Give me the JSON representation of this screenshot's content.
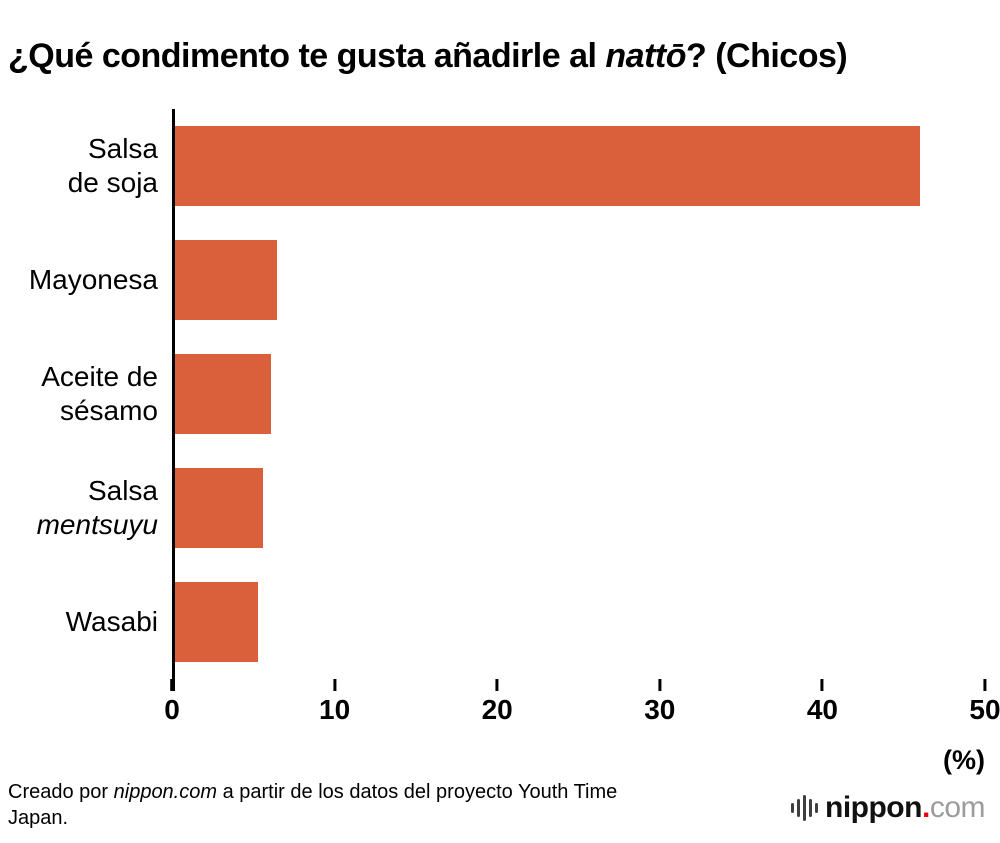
{
  "title_parts": [
    {
      "text": "¿Qué condimento te gusta añadirle al ",
      "italic": false
    },
    {
      "text": "nattō",
      "italic": true
    },
    {
      "text": "? (Chicos)",
      "italic": false
    }
  ],
  "chart_data": {
    "type": "bar",
    "orientation": "horizontal",
    "title": "¿Qué condimento te gusta añadirle al nattō? (Chicos)",
    "categories": [
      "Salsa de soja",
      "Mayonesa",
      "Aceite de sésamo",
      "Salsa mentsuyu",
      "Wasabi"
    ],
    "category_lines": [
      [
        [
          {
            "text": "Salsa"
          }
        ],
        [
          {
            "text": "de soja"
          }
        ]
      ],
      [
        [
          {
            "text": "Mayonesa"
          }
        ]
      ],
      [
        [
          {
            "text": "Aceite de"
          }
        ],
        [
          {
            "text": "sésamo"
          }
        ]
      ],
      [
        [
          {
            "text": "Salsa"
          }
        ],
        [
          {
            "text": "mentsuyu",
            "italic": true
          }
        ]
      ],
      [
        [
          {
            "text": "Wasabi"
          }
        ]
      ]
    ],
    "values": [
      45.8,
      6.3,
      5.9,
      5.4,
      5.1
    ],
    "xlim": [
      0,
      50
    ],
    "xticks": [
      0,
      10,
      20,
      30,
      40,
      50
    ],
    "x_unit_label": "(%)",
    "grid": false,
    "legend": false,
    "bar_color": "#d9603a",
    "axis_color": "#000000"
  },
  "footer": {
    "credit_parts": [
      {
        "text": "Creado por ",
        "italic": false
      },
      {
        "text": "nippon.com",
        "italic": true
      },
      {
        "text": " a partir de los datos del proyecto Youth Time Japan.",
        "italic": false
      }
    ]
  },
  "logo": {
    "brand": "nippon",
    "dot": ".",
    "tld": "com",
    "red": "#e60012",
    "gray": "#9c9c9c"
  }
}
